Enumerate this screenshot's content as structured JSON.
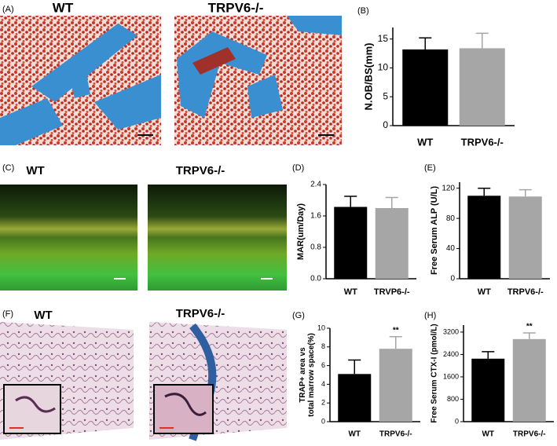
{
  "panels": {
    "labels": [
      "(A)",
      "(B)",
      "(C)",
      "(D)",
      "(E)",
      "(F)",
      "(G)",
      "(H)"
    ],
    "image_labels": {
      "a": [
        "WT",
        "TRPV6-/-"
      ],
      "c": [
        "WT",
        "TRPV6-/-"
      ],
      "f": [
        "WT",
        "TRPV6-/-"
      ]
    }
  },
  "chart_data": [
    {
      "type": "bar",
      "ylabel": [
        "N.OB/BS(mm)"
      ],
      "categories": [
        "WT",
        "TRPV6-/-"
      ],
      "values": [
        13.2,
        13.4
      ],
      "errors": [
        2.0,
        2.6
      ],
      "colors": [
        "#000000",
        "#a6a6a6"
      ],
      "ylim": [
        0,
        17
      ],
      "yticks": [
        0,
        5,
        10,
        15
      ]
    },
    {
      "type": "bar",
      "ylabel": [
        "MAR(um/Day)"
      ],
      "categories": [
        "WT",
        "TRVP6-/-"
      ],
      "values": [
        1.83,
        1.8
      ],
      "errors": [
        0.27,
        0.27
      ],
      "colors": [
        "#000000",
        "#a6a6a6"
      ],
      "ylim": [
        0,
        2.4
      ],
      "yticks": [
        {
          "value": 0,
          "label": "0.0"
        },
        {
          "value": 0.8,
          "label": "0.8"
        },
        {
          "value": 1.6,
          "label": "1.6"
        },
        {
          "value": 2.4,
          "label": "2.4"
        }
      ]
    },
    {
      "type": "bar",
      "ylabel": [
        "Free Serum ALP (U/L)"
      ],
      "categories": [
        "WT",
        "TRPV6-/-"
      ],
      "values": [
        110,
        109
      ],
      "errors": [
        10,
        9
      ],
      "colors": [
        "#000000",
        "#a6a6a6"
      ],
      "ylim": [
        0,
        128
      ],
      "yticks": [
        0,
        40,
        80,
        120
      ]
    },
    {
      "type": "bar",
      "ylabel": [
        "TRAP+ area vs",
        "total marrow space(%)"
      ],
      "categories": [
        "WT",
        "TRPV6-/-"
      ],
      "values": [
        5.1,
        7.8
      ],
      "errors": [
        1.5,
        1.3
      ],
      "colors": [
        "#000000",
        "#a6a6a6"
      ],
      "annotations": [
        null,
        "**"
      ],
      "ylim": [
        0,
        10
      ],
      "yticks": [
        0,
        2,
        4,
        6,
        8,
        10
      ]
    },
    {
      "type": "bar",
      "ylabel": [
        "Free Serum CTX-I (pmol/L)"
      ],
      "categories": [
        "WT",
        "TRPV6-/-"
      ],
      "values": [
        2250,
        2950
      ],
      "errors": [
        250,
        220
      ],
      "colors": [
        "#000000",
        "#a6a6a6"
      ],
      "annotations": [
        null,
        "**"
      ],
      "ylim": [
        0,
        3450
      ],
      "yticks": [
        0,
        800,
        1600,
        2400,
        3200
      ]
    }
  ]
}
